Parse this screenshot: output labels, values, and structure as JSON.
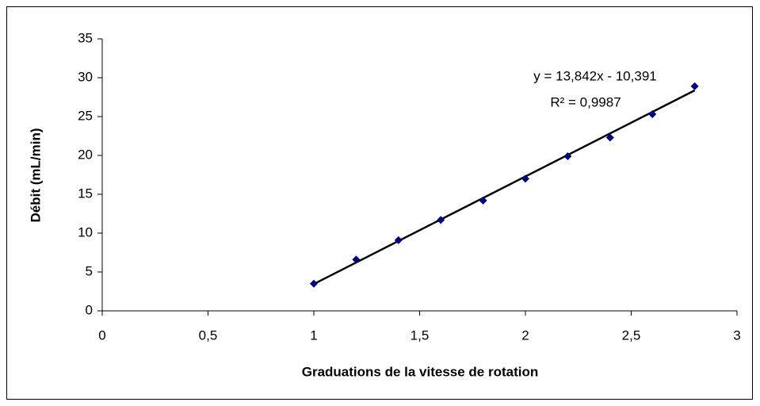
{
  "chart_data": {
    "type": "scatter",
    "x_label": "Graduations de la vitesse de rotation",
    "y_label": "Débit (mL/min)",
    "x": [
      1,
      1.2,
      1.4,
      1.6,
      1.8,
      2,
      2.2,
      2.4,
      2.6,
      2.8
    ],
    "series": [
      {
        "color": "#000080",
        "values": [
          3.5,
          6.6,
          9.1,
          11.7,
          14.2,
          17.0,
          19.9,
          22.3,
          25.3,
          28.9
        ]
      }
    ],
    "trendline": {
      "equation": "y = 13,842x - 10,391",
      "r2": "R² = 0,9987",
      "slope": 13.842,
      "intercept": -10.391,
      "color": "#000000"
    },
    "xlim": [
      0,
      3
    ],
    "xticks": [
      0,
      {
        "value": 0.5,
        "label": "0,5"
      },
      1,
      {
        "value": 1.5,
        "label": "1,5"
      },
      2,
      {
        "value": 2.5,
        "label": "2,5"
      },
      3
    ],
    "ylim": [
      0,
      35
    ],
    "yticks": [
      0,
      5,
      10,
      15,
      20,
      25,
      30,
      35
    ],
    "grid": false
  }
}
